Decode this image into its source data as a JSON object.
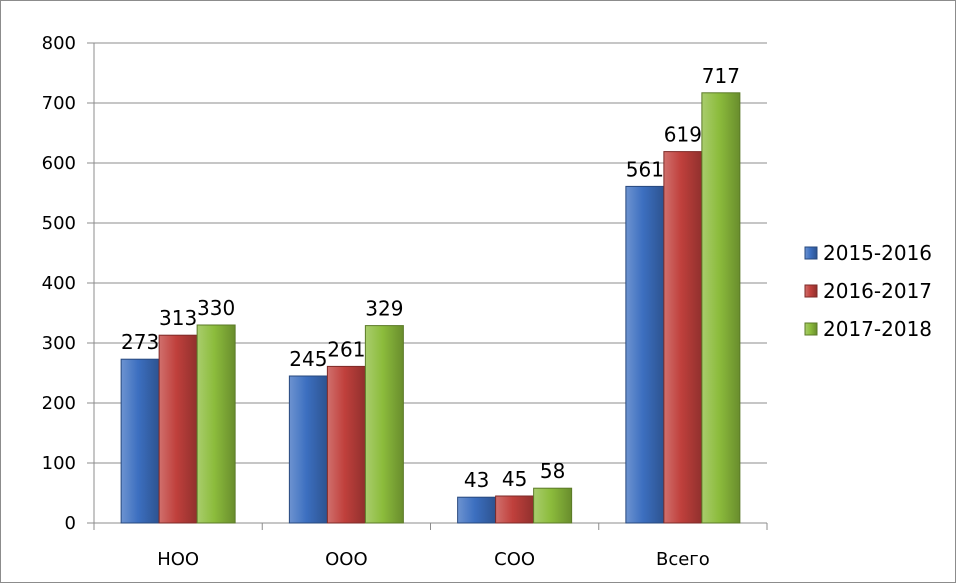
{
  "chart_data": {
    "type": "bar",
    "categories": [
      "НОО",
      "ООО",
      "СОО",
      "Всего"
    ],
    "series": [
      {
        "name": "2015-2016",
        "values": [
          273,
          245,
          43,
          561
        ],
        "color": "#3c6fc0"
      },
      {
        "name": "2016-2017",
        "values": [
          313,
          261,
          45,
          619
        ],
        "color": "#c0403c"
      },
      {
        "name": "2017-2018",
        "values": [
          330,
          329,
          58,
          717
        ],
        "color": "#8cbc3c"
      }
    ],
    "title": "",
    "xlabel": "",
    "ylabel": "",
    "ylim": [
      0,
      800
    ],
    "yticks": [
      0,
      100,
      200,
      300,
      400,
      500,
      600,
      700,
      800
    ],
    "grid": true,
    "legend": "right",
    "data_labels": true
  }
}
